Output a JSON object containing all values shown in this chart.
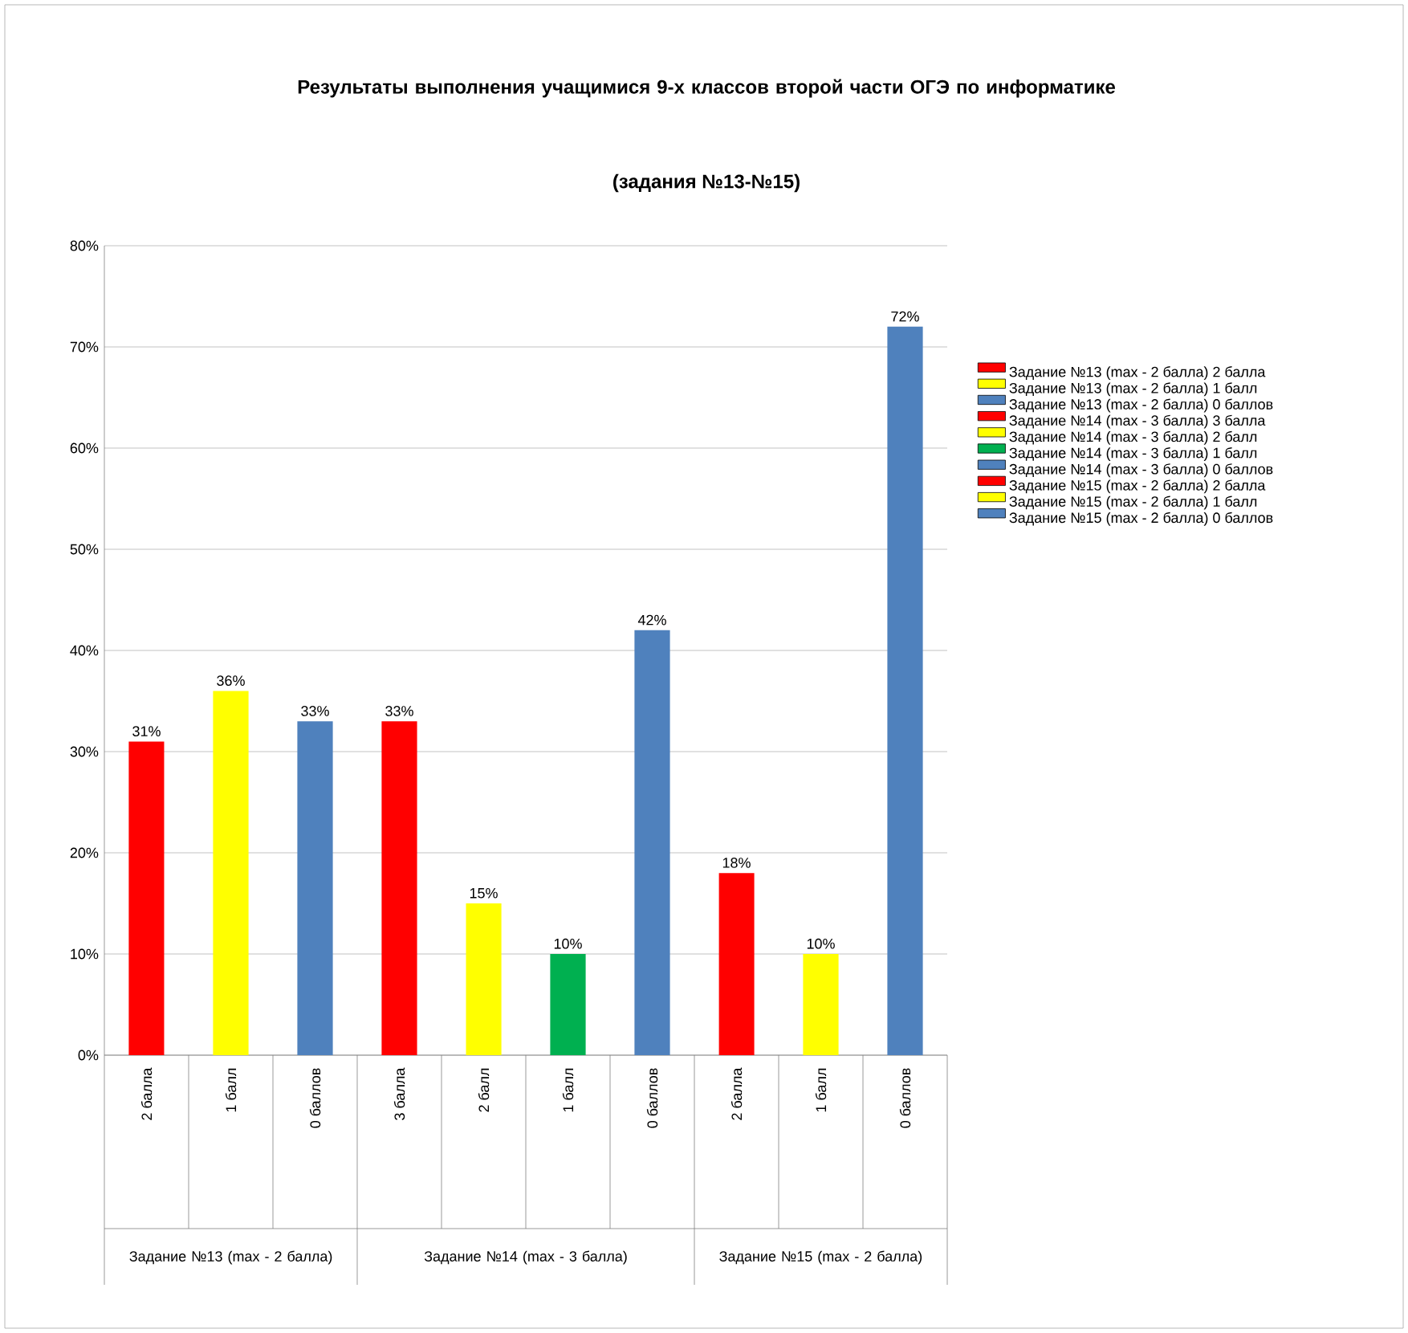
{
  "chart_data": {
    "type": "bar",
    "title": "Результаты выполнения учащимися 9-х классов второй части ОГЭ по информатике",
    "subtitle": "(задания №13-№15)",
    "categories": [
      "2 балла",
      "1 балл",
      "0 баллов",
      "3 балла",
      "2 балл",
      "1 балл",
      "0 баллов",
      "2 балла",
      "1 балл",
      "0 баллов"
    ],
    "series": [
      {
        "name": "Задание №13 (max - 2 балла) 2 балла",
        "color": "#ff0000",
        "values": [
          31,
          null,
          null,
          null,
          null,
          null,
          null,
          null,
          null,
          null
        ]
      },
      {
        "name": "Задание №13 (max - 2 балла) 1 балл",
        "color": "#ffff00",
        "values": [
          null,
          36,
          null,
          null,
          null,
          null,
          null,
          null,
          null,
          null
        ]
      },
      {
        "name": "Задание №13 (max - 2 балла) 0 баллов",
        "color": "#4f81bd",
        "values": [
          null,
          null,
          33,
          null,
          null,
          null,
          null,
          null,
          null,
          null
        ]
      },
      {
        "name": "Задание №14 (max - 3 балла) 3 балла",
        "color": "#ff0000",
        "values": [
          null,
          null,
          null,
          33,
          null,
          null,
          null,
          null,
          null,
          null
        ]
      },
      {
        "name": "Задание №14 (max - 3 балла) 2 балл",
        "color": "#ffff00",
        "values": [
          null,
          null,
          null,
          null,
          15,
          null,
          null,
          null,
          null,
          null
        ]
      },
      {
        "name": "Задание №14 (max - 3 балла) 1 балл",
        "color": "#00b050",
        "values": [
          null,
          null,
          null,
          null,
          null,
          10,
          null,
          null,
          null,
          null
        ]
      },
      {
        "name": "Задание №14 (max - 3 балла) 0 баллов",
        "color": "#4f81bd",
        "values": [
          null,
          null,
          null,
          null,
          null,
          null,
          42,
          null,
          null,
          null
        ]
      },
      {
        "name": "Задание №15 (max - 2 балла) 2 балла",
        "color": "#ff0000",
        "values": [
          null,
          null,
          null,
          null,
          null,
          null,
          null,
          18,
          null,
          null
        ]
      },
      {
        "name": "Задание №15 (max - 2 балла) 1 балл",
        "color": "#ffff00",
        "values": [
          null,
          null,
          null,
          null,
          null,
          null,
          null,
          null,
          10,
          null
        ]
      },
      {
        "name": "Задание №15 (max - 2 балла) 0 баллов",
        "color": "#4f81bd",
        "values": [
          null,
          null,
          null,
          null,
          null,
          null,
          null,
          null,
          null,
          72
        ]
      }
    ],
    "value_labels": [
      "31%",
      "36%",
      "33%",
      "33%",
      "15%",
      "10%",
      "42%",
      "18%",
      "10%",
      "72%"
    ],
    "ylim": [
      0,
      80
    ],
    "yticks": [
      {
        "value": 0,
        "label": "0%"
      },
      {
        "value": 10,
        "label": "10%"
      },
      {
        "value": 20,
        "label": "20%"
      },
      {
        "value": 30,
        "label": "30%"
      },
      {
        "value": 40,
        "label": "40%"
      },
      {
        "value": 50,
        "label": "50%"
      },
      {
        "value": 60,
        "label": "60%"
      },
      {
        "value": 70,
        "label": "70%"
      },
      {
        "value": 80,
        "label": "80%"
      }
    ],
    "grid": "y",
    "legend": "right",
    "annotations": [
      "Задание №13 (max - 2 балла)",
      "Задание №14 (max - 3 балла)",
      "Задание №15 (max - 2 балла)"
    ]
  }
}
